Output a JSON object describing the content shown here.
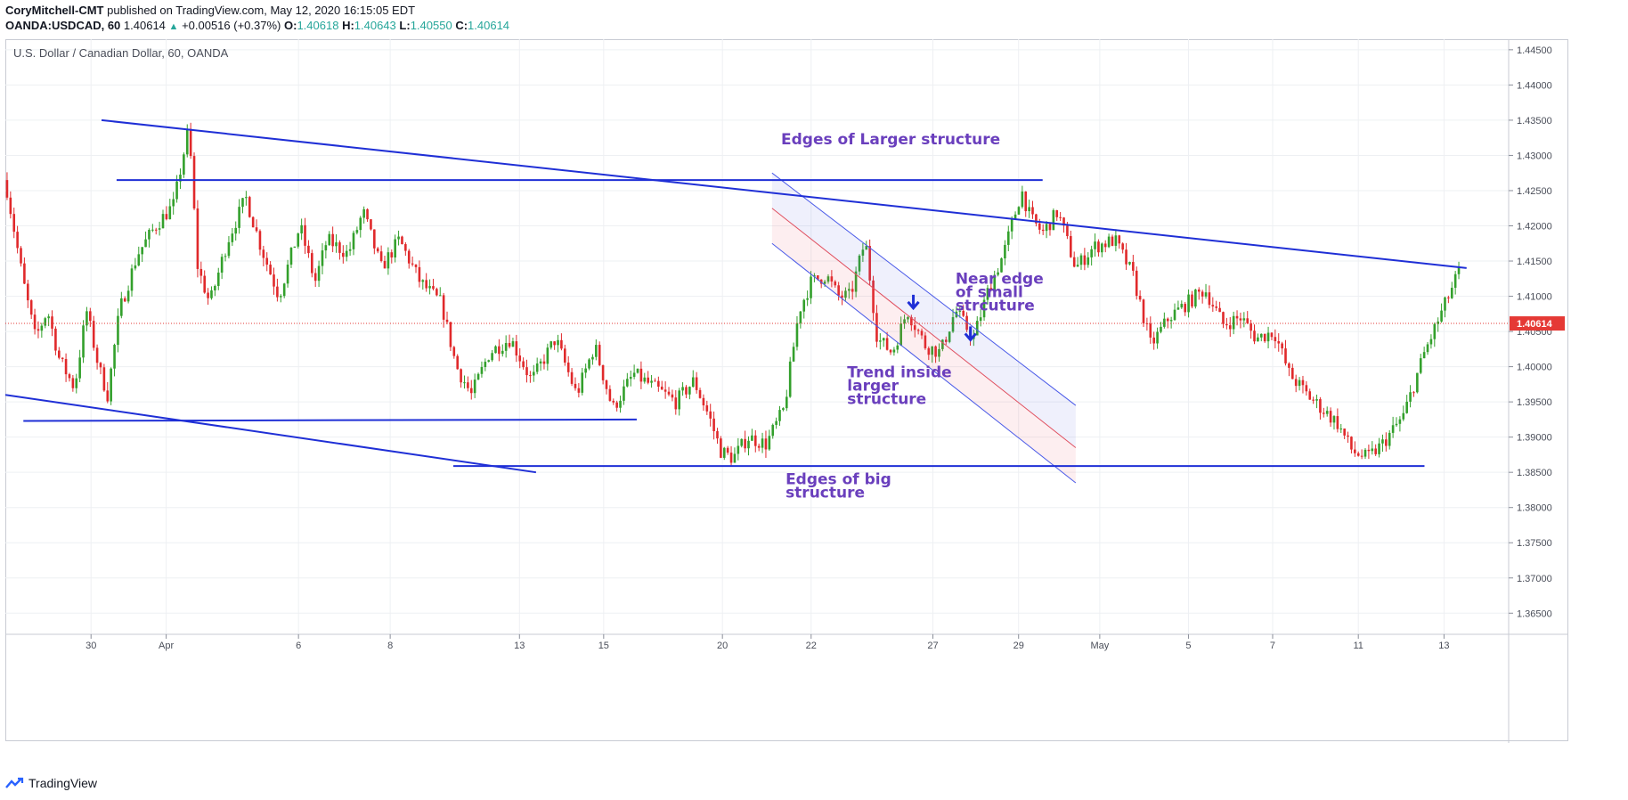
{
  "header": {
    "author": "CoryMitchell-CMT",
    "published": "published on TradingView.com, May 12, 2020 16:15:05 EDT",
    "symbol": "OANDA:USDCAD, 60",
    "last": "1.40614",
    "arrow": "▲",
    "change": "+0.00516 (+0.37%)",
    "o_label": "O:",
    "o_value": "1.40618",
    "h_label": "H:",
    "h_value": "1.40643",
    "l_label": "L:",
    "l_value": "1.40550",
    "c_label": "C:",
    "c_value": "1.40614"
  },
  "chart_title": "U.S. Dollar / Canadian Dollar, 60, OANDA",
  "footer": {
    "brand": "TradingView"
  },
  "colors": {
    "up": "#26a69a",
    "candle_up": "#33a02c",
    "candle_down": "#e0292b",
    "trendline": "#1f2fd6",
    "annotation": "#6a3fbd",
    "price_tag": "#e53935"
  },
  "chart_data": {
    "type": "candlestick",
    "ylim": [
      1.362,
      1.4465
    ],
    "y_ticks": [
      "1.44500",
      "1.44000",
      "1.43500",
      "1.43000",
      "1.42500",
      "1.42000",
      "1.41500",
      "1.41000",
      "1.40500",
      "1.40000",
      "1.39500",
      "1.39000",
      "1.38500",
      "1.38000",
      "1.37500",
      "1.37000",
      "1.36500"
    ],
    "x_ticks": [
      "30",
      "Apr",
      "6",
      "8",
      "13",
      "15",
      "20",
      "22",
      "27",
      "29",
      "May",
      "5",
      "7",
      "11",
      "13"
    ],
    "last_price": "1.40614",
    "price_path": [
      [
        0,
        1.4265
      ],
      [
        0.012,
        1.412
      ],
      [
        0.02,
        1.404
      ],
      [
        0.028,
        1.408
      ],
      [
        0.036,
        1.401
      ],
      [
        0.046,
        1.397
      ],
      [
        0.054,
        1.408
      ],
      [
        0.062,
        1.4
      ],
      [
        0.068,
        1.396
      ],
      [
        0.076,
        1.408
      ],
      [
        0.088,
        1.416
      ],
      [
        0.1,
        1.42
      ],
      [
        0.112,
        1.423
      ],
      [
        0.122,
        1.434
      ],
      [
        0.128,
        1.414
      ],
      [
        0.136,
        1.409
      ],
      [
        0.148,
        1.418
      ],
      [
        0.16,
        1.424
      ],
      [
        0.17,
        1.417
      ],
      [
        0.182,
        1.41
      ],
      [
        0.196,
        1.42
      ],
      [
        0.206,
        1.412
      ],
      [
        0.214,
        1.418
      ],
      [
        0.228,
        1.416
      ],
      [
        0.238,
        1.422
      ],
      [
        0.25,
        1.414
      ],
      [
        0.262,
        1.418
      ],
      [
        0.276,
        1.412
      ],
      [
        0.29,
        1.409
      ],
      [
        0.3,
        1.4
      ],
      [
        0.31,
        1.396
      ],
      [
        0.322,
        1.402
      ],
      [
        0.336,
        1.404
      ],
      [
        0.35,
        1.398
      ],
      [
        0.366,
        1.404
      ],
      [
        0.38,
        1.396
      ],
      [
        0.392,
        1.403
      ],
      [
        0.404,
        1.394
      ],
      [
        0.418,
        1.399
      ],
      [
        0.432,
        1.397
      ],
      [
        0.446,
        1.395
      ],
      [
        0.458,
        1.398
      ],
      [
        0.468,
        1.393
      ],
      [
        0.476,
        1.388
      ],
      [
        0.484,
        1.387
      ],
      [
        0.494,
        1.39
      ],
      [
        0.506,
        1.389
      ],
      [
        0.518,
        1.394
      ],
      [
        0.528,
        1.408
      ],
      [
        0.536,
        1.412
      ],
      [
        0.546,
        1.413
      ],
      [
        0.554,
        1.41
      ],
      [
        0.562,
        1.41
      ],
      [
        0.572,
        1.418
      ],
      [
        0.58,
        1.404
      ],
      [
        0.59,
        1.402
      ],
      [
        0.6,
        1.408
      ],
      [
        0.612,
        1.403
      ],
      [
        0.622,
        1.402
      ],
      [
        0.632,
        1.408
      ],
      [
        0.644,
        1.404
      ],
      [
        0.654,
        1.411
      ],
      [
        0.664,
        1.416
      ],
      [
        0.676,
        1.425
      ],
      [
        0.682,
        1.421
      ],
      [
        0.69,
        1.419
      ],
      [
        0.7,
        1.422
      ],
      [
        0.712,
        1.414
      ],
      [
        0.724,
        1.417
      ],
      [
        0.738,
        1.418
      ],
      [
        0.75,
        1.413
      ],
      [
        0.762,
        1.403
      ],
      [
        0.774,
        1.407
      ],
      [
        0.786,
        1.409
      ],
      [
        0.798,
        1.411
      ],
      [
        0.81,
        1.406
      ],
      [
        0.822,
        1.407
      ],
      [
        0.832,
        1.404
      ],
      [
        0.844,
        1.405
      ],
      [
        0.854,
        1.399
      ],
      [
        0.866,
        1.396
      ],
      [
        0.876,
        1.394
      ],
      [
        0.886,
        1.392
      ],
      [
        0.896,
        1.388
      ],
      [
        0.906,
        1.387
      ],
      [
        0.916,
        1.389
      ],
      [
        0.93,
        1.393
      ],
      [
        0.944,
        1.402
      ],
      [
        0.956,
        1.408
      ],
      [
        0.968,
        1.414
      ]
    ],
    "trend_lines": [
      {
        "label": "upper-descending",
        "t1": 0.064,
        "p1": 1.435,
        "t2": 0.972,
        "p2": 1.414
      },
      {
        "label": "lower-descending",
        "t1": 0.0,
        "p1": 1.396,
        "t2": 0.353,
        "p2": 1.385
      },
      {
        "label": "top-horizontal",
        "t1": 0.074,
        "p1": 1.4265,
        "t2": 0.69,
        "p2": 1.4265
      },
      {
        "label": "mid-horizontal",
        "t1": 0.012,
        "p1": 1.3923,
        "t2": 0.42,
        "p2": 1.3925
      },
      {
        "label": "bottom-horizontal",
        "t1": 0.298,
        "p1": 1.3859,
        "t2": 0.944,
        "p2": 1.3859
      }
    ],
    "channel": {
      "upper": {
        "t1": 0.51,
        "p1": 1.4275,
        "t2": 0.712,
        "p2": 1.3945
      },
      "mid": {
        "t1": 0.51,
        "p1": 1.4225,
        "t2": 0.712,
        "p2": 1.3885
      },
      "lower": {
        "t1": 0.51,
        "p1": 1.4175,
        "t2": 0.712,
        "p2": 1.3835
      }
    },
    "markers": [
      {
        "type": "arrow-down",
        "t": 0.604,
        "p": 1.4092
      },
      {
        "type": "arrow-down",
        "t": 0.642,
        "p": 1.4047
      }
    ],
    "annotations": [
      {
        "lines": [
          "Edges of Larger structure"
        ],
        "t": 0.516,
        "p": 1.4316
      },
      {
        "lines": [
          "Near edge",
          "of small",
          "strcuture"
        ],
        "t": 0.632,
        "p": 1.4118
      },
      {
        "lines": [
          "Trend inside",
          "larger",
          "structure"
        ],
        "t": 0.56,
        "p": 1.3985
      },
      {
        "lines": [
          "Edges of big",
          "structure"
        ],
        "t": 0.519,
        "p": 1.3833
      }
    ]
  }
}
